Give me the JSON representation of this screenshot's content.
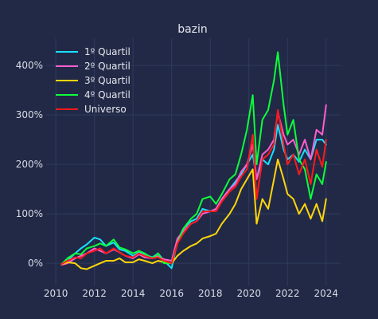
{
  "chart_data": {
    "type": "line",
    "title": "bazin",
    "xlabel": "",
    "ylabel": "",
    "x_ticks": [
      "2010",
      "2012",
      "2014",
      "2016",
      "2018",
      "2020",
      "2022",
      "2024"
    ],
    "y_ticks": [
      "0%",
      "100%",
      "200%",
      "300%",
      "400%"
    ],
    "x_range": [
      2009.5,
      2024.75
    ],
    "y_range": [
      -0.45,
      4.55
    ],
    "grid": true,
    "legend_position": "top-left",
    "x": [
      2010.3,
      2010.6,
      2011.0,
      2011.3,
      2011.6,
      2012.0,
      2012.3,
      2012.6,
      2013.0,
      2013.3,
      2013.6,
      2014.0,
      2014.3,
      2014.6,
      2015.0,
      2015.3,
      2015.6,
      2016.0,
      2016.3,
      2016.6,
      2017.0,
      2017.3,
      2017.6,
      2018.0,
      2018.3,
      2018.6,
      2019.0,
      2019.3,
      2019.6,
      2019.9,
      2020.2,
      2020.4,
      2020.7,
      2021.0,
      2021.3,
      2021.5,
      2021.8,
      2022.0,
      2022.3,
      2022.6,
      2022.9,
      2023.2,
      2023.5,
      2023.8,
      2024.0
    ],
    "series": [
      {
        "name": "1º Quartil",
        "color": "#18e0ff",
        "values": [
          -0.02,
          0.05,
          0.2,
          0.3,
          0.38,
          0.52,
          0.48,
          0.35,
          0.42,
          0.28,
          0.25,
          0.15,
          0.22,
          0.18,
          0.12,
          0.2,
          0.05,
          -0.1,
          0.45,
          0.7,
          0.85,
          0.9,
          1.1,
          1.05,
          1.1,
          1.3,
          1.5,
          1.65,
          1.8,
          2.0,
          2.2,
          1.7,
          2.1,
          2.0,
          2.3,
          2.8,
          2.3,
          2.1,
          2.2,
          2.05,
          2.3,
          2.1,
          2.5,
          2.5,
          2.4
        ]
      },
      {
        "name": "2º Quartil",
        "color": "#ff5dcf",
        "values": [
          -0.03,
          0.0,
          0.1,
          0.15,
          0.2,
          0.3,
          0.25,
          0.2,
          0.28,
          0.22,
          0.15,
          0.1,
          0.18,
          0.12,
          0.1,
          0.15,
          0.08,
          0.05,
          0.5,
          0.65,
          0.8,
          0.85,
          1.0,
          1.05,
          1.1,
          1.3,
          1.5,
          1.6,
          1.85,
          2.0,
          2.4,
          1.7,
          2.2,
          2.3,
          2.5,
          3.05,
          2.6,
          2.4,
          2.5,
          2.2,
          2.5,
          2.1,
          2.7,
          2.6,
          3.2
        ]
      },
      {
        "name": "3º Quartil",
        "color": "#ffd60a",
        "values": [
          -0.02,
          0.02,
          0.0,
          -0.1,
          -0.12,
          -0.05,
          0.0,
          0.05,
          0.05,
          0.1,
          0.02,
          0.02,
          0.08,
          0.05,
          0.0,
          0.05,
          0.02,
          0.0,
          0.15,
          0.25,
          0.35,
          0.4,
          0.5,
          0.55,
          0.6,
          0.8,
          1.0,
          1.2,
          1.5,
          1.7,
          1.9,
          0.8,
          1.3,
          1.1,
          1.7,
          2.1,
          1.7,
          1.4,
          1.3,
          1.0,
          1.2,
          0.9,
          1.2,
          0.85,
          1.3
        ]
      },
      {
        "name": "4º Quartil",
        "color": "#0dff3a",
        "values": [
          -0.02,
          0.1,
          0.2,
          0.18,
          0.3,
          0.35,
          0.4,
          0.35,
          0.48,
          0.32,
          0.28,
          0.2,
          0.25,
          0.2,
          0.1,
          0.2,
          0.0,
          0.0,
          0.4,
          0.7,
          0.9,
          1.0,
          1.3,
          1.35,
          1.2,
          1.4,
          1.7,
          1.8,
          2.2,
          2.7,
          3.4,
          2.0,
          2.9,
          3.1,
          3.7,
          4.27,
          3.2,
          2.6,
          2.9,
          2.1,
          1.9,
          1.3,
          1.8,
          1.6,
          2.05
        ]
      },
      {
        "name": "Universo",
        "color": "#ff1a1a",
        "values": [
          -0.02,
          0.05,
          0.12,
          0.1,
          0.2,
          0.25,
          0.3,
          0.2,
          0.3,
          0.22,
          0.15,
          0.12,
          0.2,
          0.15,
          0.1,
          0.12,
          0.05,
          0.0,
          0.4,
          0.6,
          0.8,
          0.85,
          1.05,
          1.05,
          1.05,
          1.25,
          1.45,
          1.55,
          1.75,
          1.9,
          2.6,
          1.3,
          2.1,
          2.2,
          2.4,
          3.1,
          2.4,
          2.0,
          2.2,
          1.8,
          2.1,
          1.6,
          2.3,
          1.95,
          2.5
        ]
      }
    ]
  }
}
